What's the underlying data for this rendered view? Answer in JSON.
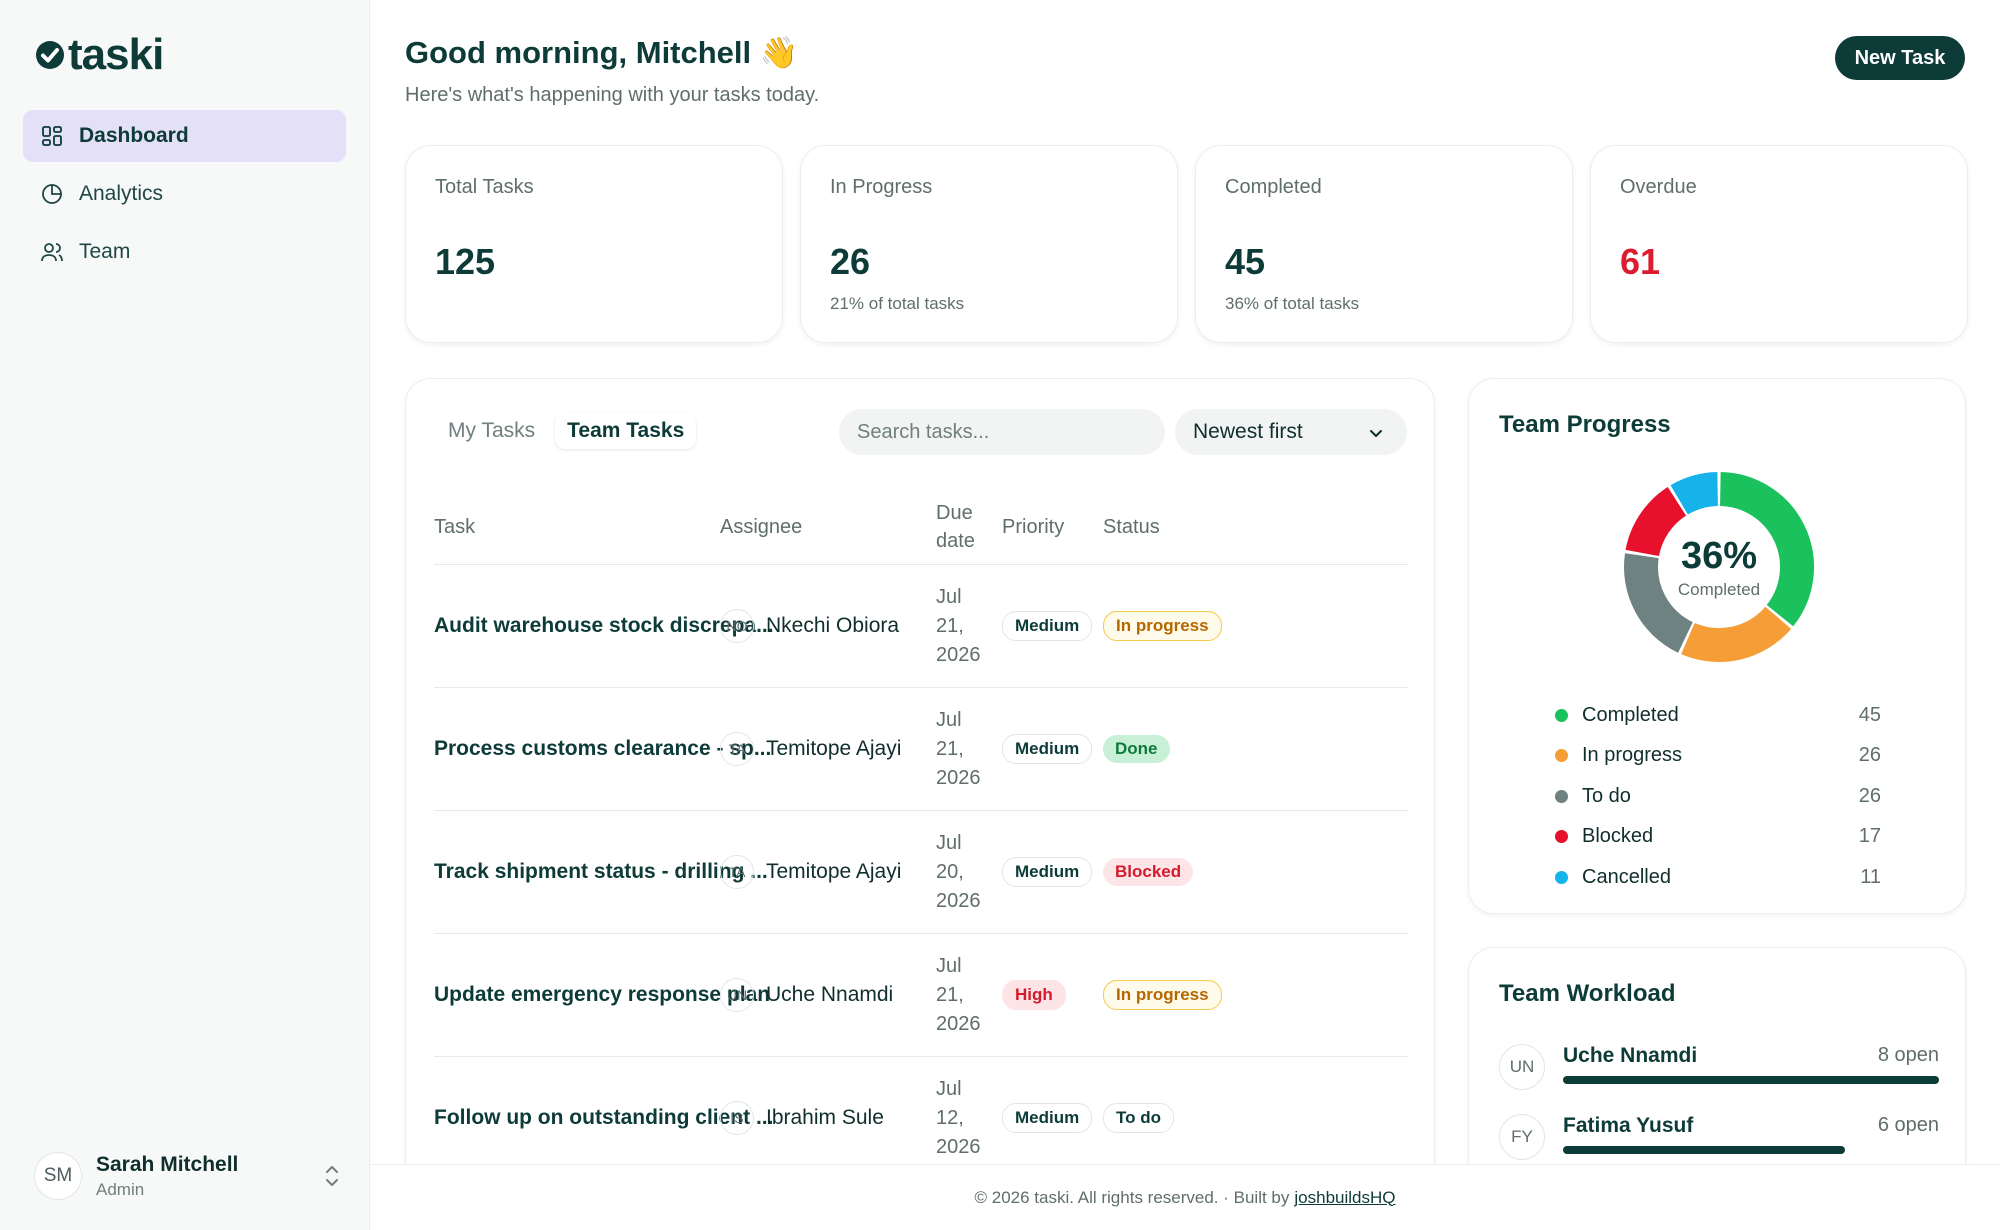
{
  "brand": {
    "name": "taski"
  },
  "nav": [
    {
      "label": "Dashboard",
      "active": true,
      "icon": "grid-icon"
    },
    {
      "label": "Analytics",
      "active": false,
      "icon": "pie-chart-icon"
    },
    {
      "label": "Team",
      "active": false,
      "icon": "users-icon"
    }
  ],
  "user": {
    "initials": "SM",
    "name": "Sarah Mitchell",
    "role": "Admin"
  },
  "header": {
    "greeting": "Good morning, Mitchell 👋",
    "subtitle": "Here's what's happening with your tasks today.",
    "new_task_label": "New Task"
  },
  "stats": [
    {
      "label": "Total Tasks",
      "value": "125",
      "sub": ""
    },
    {
      "label": "In Progress",
      "value": "26",
      "sub": "21% of total tasks"
    },
    {
      "label": "Completed",
      "value": "45",
      "sub": "36% of total tasks"
    },
    {
      "label": "Overdue",
      "value": "61",
      "sub": "",
      "color": "#dc1c2e"
    }
  ],
  "tasks": {
    "tabs": [
      "My Tasks",
      "Team Tasks"
    ],
    "active_tab": "Team Tasks",
    "search_placeholder": "Search tasks...",
    "sort_value": "Newest first",
    "columns": [
      "Task",
      "Assignee",
      "Due date",
      "Priority",
      "Status"
    ],
    "rows": [
      {
        "task": "Audit warehouse stock discrepa...",
        "initials": "NO",
        "assignee": "Nkechi Obiora",
        "due": [
          "Jul",
          "21,",
          "2026"
        ],
        "priority": "Medium",
        "status": "In progress"
      },
      {
        "task": "Process customs clearance - sp...",
        "initials": "TA",
        "assignee": "Temitope Ajayi",
        "due": [
          "Jul",
          "21,",
          "2026"
        ],
        "priority": "Medium",
        "status": "Done"
      },
      {
        "task": "Track shipment status - drilling ...",
        "initials": "TA",
        "assignee": "Temitope Ajayi",
        "due": [
          "Jul",
          "20,",
          "2026"
        ],
        "priority": "Medium",
        "status": "Blocked"
      },
      {
        "task": "Update emergency response plan",
        "initials": "UN",
        "assignee": "Uche Nnamdi",
        "due": [
          "Jul",
          "21,",
          "2026"
        ],
        "priority": "High",
        "status": "In progress"
      },
      {
        "task": "Follow up on outstanding client ...",
        "initials": "IS",
        "assignee": "Ibrahim Sule",
        "due": [
          "Jul",
          "12,",
          "2026"
        ],
        "priority": "Medium",
        "status": "To do"
      }
    ]
  },
  "team_progress": {
    "title": "Team Progress",
    "center_value": "36%",
    "center_label": "Completed",
    "segments": [
      {
        "label": "Completed",
        "value": 45,
        "color": "#1bc15d"
      },
      {
        "label": "In progress",
        "value": 26,
        "color": "#f59d36"
      },
      {
        "label": "To do",
        "value": 26,
        "color": "#6e8281"
      },
      {
        "label": "Blocked",
        "value": 17,
        "color": "#e8112d"
      },
      {
        "label": "Cancelled",
        "value": 11,
        "color": "#16b2ea"
      }
    ]
  },
  "team_workload": {
    "title": "Team Workload",
    "members": [
      {
        "initials": "UN",
        "name": "Uche Nnamdi",
        "open": "8 open",
        "fill": 1.0
      },
      {
        "initials": "FY",
        "name": "Fatima Yusuf",
        "open": "6 open",
        "fill": 0.75
      }
    ]
  },
  "footer": {
    "text": "© 2026 taski. All rights reserved. · Built by",
    "link": "joshbuildsHQ"
  }
}
